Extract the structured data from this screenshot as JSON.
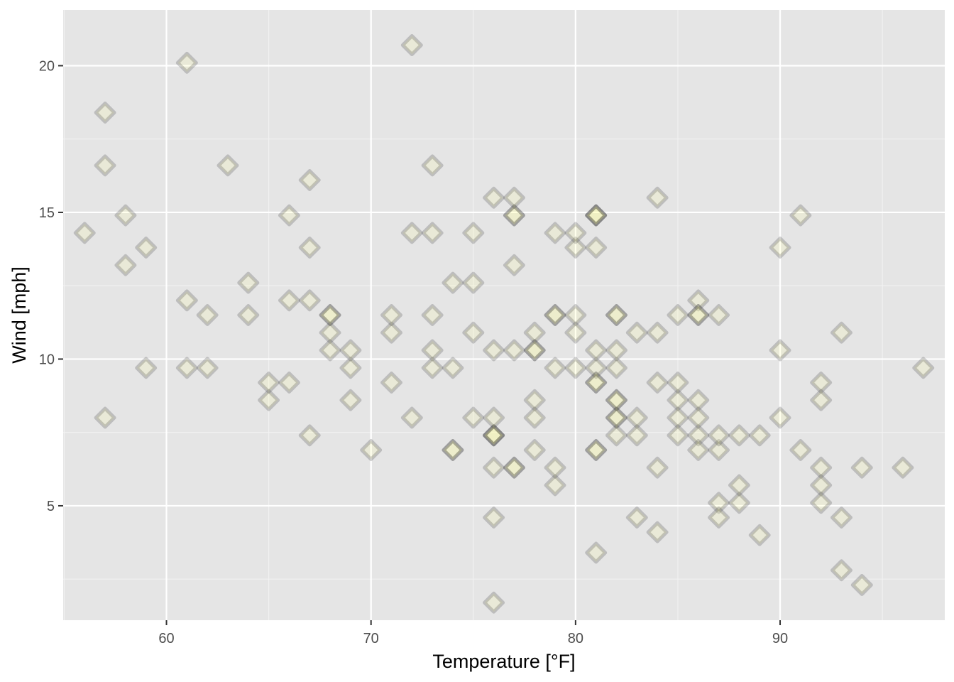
{
  "chart_data": {
    "type": "scatter",
    "xlabel": "Temperature [°F]",
    "ylabel": "Wind [mph]",
    "xlim": [
      54.95,
      98.05
    ],
    "ylim": [
      1.1,
      21.9
    ],
    "x_ticks": [
      60,
      70,
      80,
      90
    ],
    "y_ticks": [
      5,
      10,
      15,
      20
    ],
    "x_tick_labels": [
      "60",
      "70",
      "80",
      "90"
    ],
    "y_tick_labels": [
      "5",
      "10",
      "15",
      "20"
    ],
    "grid": true,
    "legend": "none",
    "marker": "diamond",
    "colors": {
      "panel_background": "#e5e5e5",
      "grid_major": "#ffffff",
      "grid_minor": "#f2f2f2",
      "marker_outline": "#333333",
      "marker_fill": "#ffff99",
      "tick_color": "#333333"
    },
    "points": [
      {
        "x": 67,
        "y": 7.4
      },
      {
        "x": 72,
        "y": 8.0
      },
      {
        "x": 74,
        "y": 12.6
      },
      {
        "x": 62,
        "y": 11.5
      },
      {
        "x": 56,
        "y": 14.3
      },
      {
        "x": 66,
        "y": 14.9
      },
      {
        "x": 65,
        "y": 8.6
      },
      {
        "x": 59,
        "y": 13.8
      },
      {
        "x": 61,
        "y": 20.1
      },
      {
        "x": 69,
        "y": 8.6
      },
      {
        "x": 74,
        "y": 6.9
      },
      {
        "x": 69,
        "y": 9.7
      },
      {
        "x": 66,
        "y": 9.2
      },
      {
        "x": 68,
        "y": 10.9
      },
      {
        "x": 58,
        "y": 13.2
      },
      {
        "x": 64,
        "y": 11.5
      },
      {
        "x": 66,
        "y": 12.0
      },
      {
        "x": 57,
        "y": 18.4
      },
      {
        "x": 68,
        "y": 11.5
      },
      {
        "x": 62,
        "y": 9.7
      },
      {
        "x": 59,
        "y": 9.7
      },
      {
        "x": 73,
        "y": 16.6
      },
      {
        "x": 61,
        "y": 9.7
      },
      {
        "x": 61,
        "y": 12.0
      },
      {
        "x": 57,
        "y": 16.6
      },
      {
        "x": 58,
        "y": 14.9
      },
      {
        "x": 57,
        "y": 8.0
      },
      {
        "x": 67,
        "y": 12.0
      },
      {
        "x": 81,
        "y": 14.9
      },
      {
        "x": 79,
        "y": 5.7
      },
      {
        "x": 76,
        "y": 7.4
      },
      {
        "x": 78,
        "y": 8.6
      },
      {
        "x": 74,
        "y": 9.7
      },
      {
        "x": 67,
        "y": 16.1
      },
      {
        "x": 84,
        "y": 9.2
      },
      {
        "x": 85,
        "y": 8.6
      },
      {
        "x": 79,
        "y": 14.3
      },
      {
        "x": 82,
        "y": 9.7
      },
      {
        "x": 87,
        "y": 6.9
      },
      {
        "x": 90,
        "y": 13.8
      },
      {
        "x": 87,
        "y": 11.5
      },
      {
        "x": 93,
        "y": 10.9
      },
      {
        "x": 92,
        "y": 9.2
      },
      {
        "x": 82,
        "y": 8.0
      },
      {
        "x": 80,
        "y": 13.8
      },
      {
        "x": 79,
        "y": 11.5
      },
      {
        "x": 77,
        "y": 14.9
      },
      {
        "x": 72,
        "y": 20.7
      },
      {
        "x": 65,
        "y": 9.2
      },
      {
        "x": 73,
        "y": 11.5
      },
      {
        "x": 76,
        "y": 10.3
      },
      {
        "x": 77,
        "y": 6.3
      },
      {
        "x": 76,
        "y": 1.7
      },
      {
        "x": 76,
        "y": 4.6
      },
      {
        "x": 76,
        "y": 6.3
      },
      {
        "x": 75,
        "y": 8.0
      },
      {
        "x": 78,
        "y": 8.0
      },
      {
        "x": 73,
        "y": 10.3
      },
      {
        "x": 80,
        "y": 11.5
      },
      {
        "x": 77,
        "y": 14.9
      },
      {
        "x": 83,
        "y": 8.0
      },
      {
        "x": 84,
        "y": 4.1
      },
      {
        "x": 85,
        "y": 9.2
      },
      {
        "x": 81,
        "y": 9.2
      },
      {
        "x": 84,
        "y": 10.9
      },
      {
        "x": 83,
        "y": 4.6
      },
      {
        "x": 83,
        "y": 10.9
      },
      {
        "x": 88,
        "y": 5.1
      },
      {
        "x": 92,
        "y": 6.3
      },
      {
        "x": 92,
        "y": 5.7
      },
      {
        "x": 89,
        "y": 7.4
      },
      {
        "x": 82,
        "y": 8.6
      },
      {
        "x": 73,
        "y": 14.3
      },
      {
        "x": 81,
        "y": 14.9
      },
      {
        "x": 91,
        "y": 14.9
      },
      {
        "x": 80,
        "y": 14.3
      },
      {
        "x": 81,
        "y": 6.9
      },
      {
        "x": 82,
        "y": 10.3
      },
      {
        "x": 84,
        "y": 6.3
      },
      {
        "x": 87,
        "y": 5.1
      },
      {
        "x": 85,
        "y": 11.5
      },
      {
        "x": 74,
        "y": 6.9
      },
      {
        "x": 81,
        "y": 9.7
      },
      {
        "x": 82,
        "y": 11.5
      },
      {
        "x": 86,
        "y": 8.6
      },
      {
        "x": 85,
        "y": 8.0
      },
      {
        "x": 82,
        "y": 8.6
      },
      {
        "x": 86,
        "y": 12.0
      },
      {
        "x": 88,
        "y": 7.4
      },
      {
        "x": 86,
        "y": 7.4
      },
      {
        "x": 83,
        "y": 7.4
      },
      {
        "x": 81,
        "y": 9.2
      },
      {
        "x": 81,
        "y": 6.9
      },
      {
        "x": 81,
        "y": 13.8
      },
      {
        "x": 82,
        "y": 7.4
      },
      {
        "x": 86,
        "y": 6.9
      },
      {
        "x": 85,
        "y": 7.4
      },
      {
        "x": 87,
        "y": 4.6
      },
      {
        "x": 89,
        "y": 4.0
      },
      {
        "x": 90,
        "y": 10.3
      },
      {
        "x": 90,
        "y": 8.0
      },
      {
        "x": 92,
        "y": 8.6
      },
      {
        "x": 86,
        "y": 11.5
      },
      {
        "x": 86,
        "y": 11.5
      },
      {
        "x": 82,
        "y": 11.5
      },
      {
        "x": 80,
        "y": 9.7
      },
      {
        "x": 79,
        "y": 11.5
      },
      {
        "x": 77,
        "y": 10.3
      },
      {
        "x": 79,
        "y": 6.3
      },
      {
        "x": 76,
        "y": 7.4
      },
      {
        "x": 78,
        "y": 10.9
      },
      {
        "x": 78,
        "y": 10.3
      },
      {
        "x": 77,
        "y": 15.5
      },
      {
        "x": 72,
        "y": 14.3
      },
      {
        "x": 75,
        "y": 12.6
      },
      {
        "x": 79,
        "y": 9.7
      },
      {
        "x": 81,
        "y": 3.4
      },
      {
        "x": 86,
        "y": 8.0
      },
      {
        "x": 88,
        "y": 5.7
      },
      {
        "x": 97,
        "y": 9.7
      },
      {
        "x": 94,
        "y": 2.3
      },
      {
        "x": 96,
        "y": 6.3
      },
      {
        "x": 94,
        "y": 6.3
      },
      {
        "x": 91,
        "y": 6.9
      },
      {
        "x": 92,
        "y": 5.1
      },
      {
        "x": 93,
        "y": 2.8
      },
      {
        "x": 93,
        "y": 4.6
      },
      {
        "x": 87,
        "y": 7.4
      },
      {
        "x": 84,
        "y": 15.5
      },
      {
        "x": 80,
        "y": 10.9
      },
      {
        "x": 78,
        "y": 10.3
      },
      {
        "x": 75,
        "y": 10.9
      },
      {
        "x": 73,
        "y": 9.7
      },
      {
        "x": 81,
        "y": 14.9
      },
      {
        "x": 76,
        "y": 15.5
      },
      {
        "x": 77,
        "y": 6.3
      },
      {
        "x": 71,
        "y": 10.9
      },
      {
        "x": 71,
        "y": 9.2
      },
      {
        "x": 78,
        "y": 6.9
      },
      {
        "x": 67,
        "y": 13.8
      },
      {
        "x": 76,
        "y": 7.4
      },
      {
        "x": 68,
        "y": 10.3
      },
      {
        "x": 82,
        "y": 8.0
      },
      {
        "x": 64,
        "y": 12.6
      },
      {
        "x": 71,
        "y": 11.5
      },
      {
        "x": 81,
        "y": 10.3
      },
      {
        "x": 69,
        "y": 10.3
      },
      {
        "x": 63,
        "y": 16.6
      },
      {
        "x": 70,
        "y": 6.9
      },
      {
        "x": 77,
        "y": 13.2
      },
      {
        "x": 75,
        "y": 14.3
      },
      {
        "x": 76,
        "y": 8.0
      },
      {
        "x": 68,
        "y": 11.5
      }
    ]
  }
}
